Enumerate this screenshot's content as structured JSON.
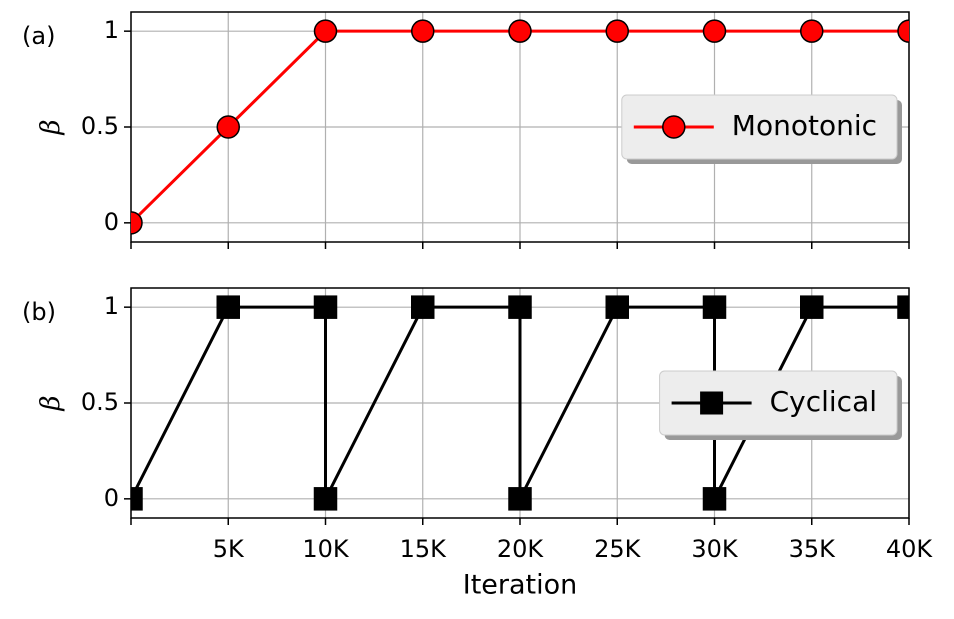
{
  "chart_data": [
    {
      "type": "line",
      "panel_label": "(a)",
      "y_label": "β",
      "x": [
        0,
        5000,
        10000,
        15000,
        20000,
        25000,
        30000,
        35000,
        40000
      ],
      "series": [
        {
          "name": "Monotonic",
          "color": "#ff0000",
          "marker": "circle",
          "values": [
            0,
            0.5,
            1,
            1,
            1,
            1,
            1,
            1,
            1
          ]
        }
      ],
      "xlim": [
        0,
        40000
      ],
      "xticks": [
        0,
        5000,
        10000,
        15000,
        20000,
        25000,
        30000,
        35000,
        40000
      ],
      "ylim": [
        -0.1,
        1.1
      ],
      "yticks": [
        0,
        0.5,
        1
      ],
      "grid": true,
      "legend": "center right"
    },
    {
      "type": "line",
      "panel_label": "(b)",
      "y_label": "β",
      "x_label": "Iteration",
      "x": [
        0,
        5000,
        10000,
        10000,
        15000,
        20000,
        20000,
        25000,
        30000,
        30000,
        35000,
        40000
      ],
      "series": [
        {
          "name": "Cyclical",
          "color": "#000000",
          "marker": "square",
          "values": [
            0,
            1,
            1,
            0,
            1,
            1,
            0,
            1,
            1,
            0,
            1,
            1
          ]
        }
      ],
      "xlim": [
        0,
        40000
      ],
      "xticks": [
        0,
        {
          "value": 5000,
          "label": "5K"
        },
        {
          "value": 10000,
          "label": "10K"
        },
        {
          "value": 15000,
          "label": "15K"
        },
        {
          "value": 20000,
          "label": "20K"
        },
        {
          "value": 25000,
          "label": "25K"
        },
        {
          "value": 30000,
          "label": "30K"
        },
        {
          "value": 35000,
          "label": "35K"
        },
        {
          "value": 40000,
          "label": "40K"
        }
      ],
      "ylim": [
        -0.1,
        1.1
      ],
      "yticks": [
        0,
        0.5,
        1
      ],
      "grid": true,
      "legend": "center right"
    }
  ]
}
